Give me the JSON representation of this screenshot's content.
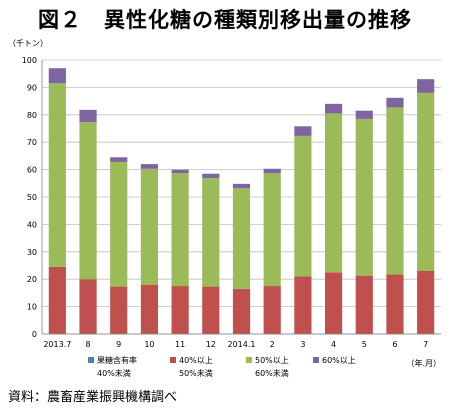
{
  "chart_data": {
    "type": "bar",
    "stacked": true,
    "title": "図２　異性化糖の種類別移出量の推移",
    "ylabel": "（千トン）",
    "xlabel": "（年.月）",
    "ylim": [
      0,
      100
    ],
    "yticks": [
      0,
      10,
      20,
      30,
      40,
      50,
      60,
      70,
      80,
      90,
      100
    ],
    "grid": true,
    "legend_position": "bottom",
    "categories": [
      "2013.7",
      "8",
      "9",
      "10",
      "11",
      "12",
      "2014.1",
      "2",
      "3",
      "4",
      "5",
      "6",
      "7"
    ],
    "series": [
      {
        "name": "果糖含有率 40%未満",
        "color": "#4f81bd",
        "values": [
          0,
          0,
          0,
          0,
          0,
          0,
          0,
          0,
          0,
          0,
          0,
          0,
          0
        ]
      },
      {
        "name": "40%以上 50%未満",
        "color": "#c0504d",
        "values": [
          24.5,
          20,
          17.3,
          18,
          17.5,
          17.3,
          16.5,
          17.5,
          21,
          22.5,
          21.3,
          21.7,
          23
        ]
      },
      {
        "name": "50%以上 60%未満",
        "color": "#9bbb59",
        "values": [
          67,
          57.3,
          45.5,
          42.3,
          41.2,
          39.6,
          36.7,
          41.2,
          51.3,
          58,
          57.2,
          61,
          65
        ]
      },
      {
        "name": "60%以上",
        "color": "#8064a2",
        "values": [
          5.5,
          4.5,
          1.7,
          1.7,
          1.3,
          1.6,
          1.6,
          1.6,
          3.5,
          3.5,
          3,
          3.5,
          5
        ]
      }
    ]
  },
  "source": "資料：農畜産業振興機構調べ"
}
